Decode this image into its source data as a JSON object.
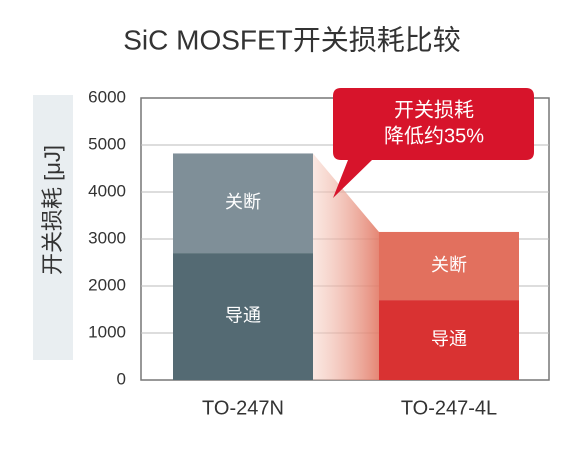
{
  "chart_data": {
    "type": "stacked_bar",
    "title": "SiC MOSFET开关损耗比较",
    "y_label": "开关损耗 [μJ]",
    "categories": [
      "TO-247N",
      "TO-247-4L"
    ],
    "series": [
      {
        "name": "导通",
        "colors": [
          "#546a73",
          "#d93232"
        ],
        "values": [
          2700,
          1700
        ]
      },
      {
        "name": "关断",
        "colors": [
          "#7f8f98",
          "#e2705e"
        ],
        "values": [
          2120,
          1450
        ]
      }
    ],
    "ylim": [
      0,
      6000
    ],
    "yticks": [
      0,
      1000,
      2000,
      3000,
      4000,
      5000,
      6000
    ],
    "annotation": [
      "开关损耗",
      "降低约35%"
    ],
    "annotation_color": "#d7142b"
  }
}
